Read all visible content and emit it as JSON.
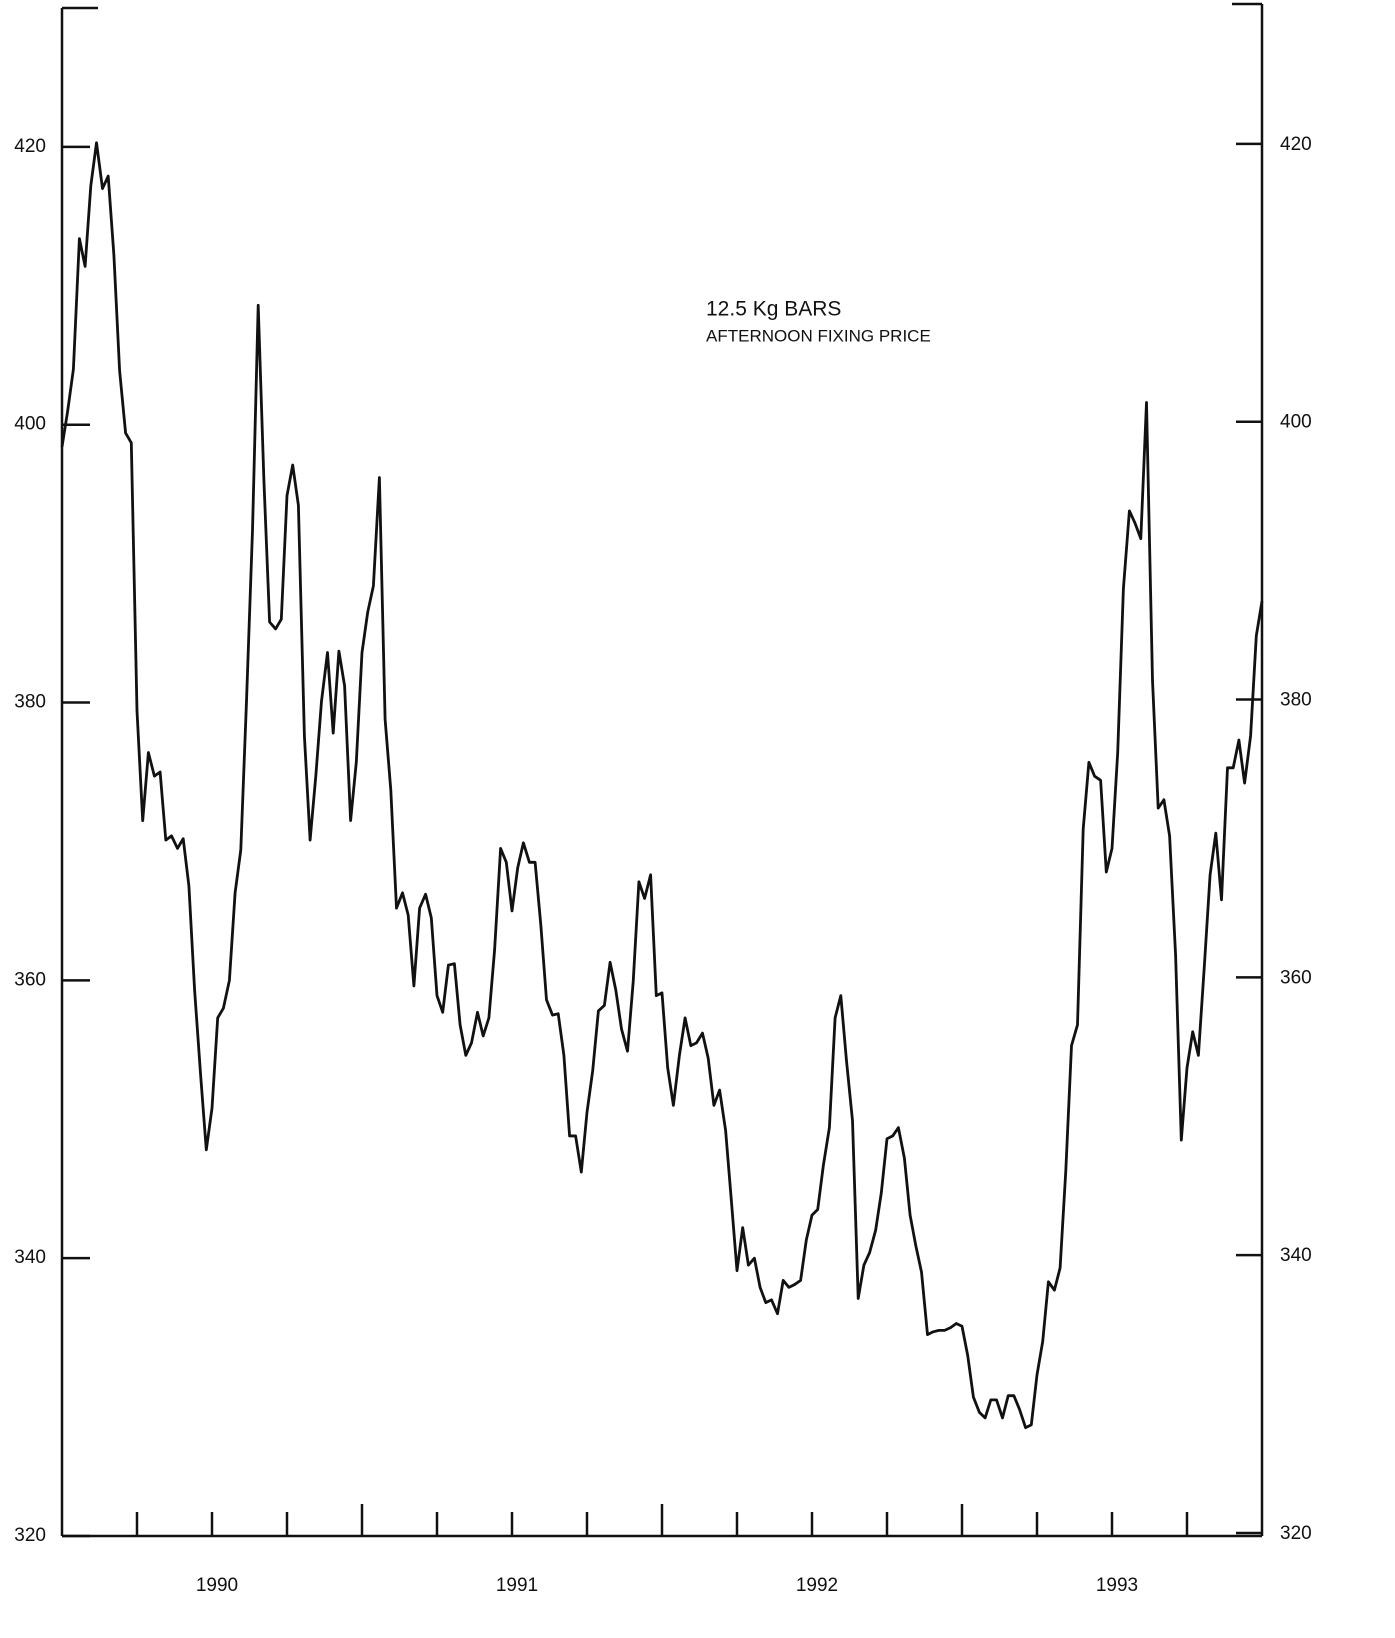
{
  "chart_data": {
    "type": "line",
    "annotations": [
      "12.5 Kg BARS",
      "AFTERNOON FIXING PRICE"
    ],
    "xlim": [
      1989.5,
      1993.5
    ],
    "xticks": [
      1990,
      1991,
      1992,
      1993
    ],
    "xminorticks": [
      1989.75,
      1990.25,
      1990.5,
      1990.75,
      1991.25,
      1991.5,
      1991.75,
      1992.25,
      1992.5,
      1992.75,
      1993.25
    ],
    "ylim": [
      320,
      430
    ],
    "yticks": [
      320,
      340,
      360,
      380,
      400,
      420
    ],
    "grid": false,
    "series": [
      {
        "color": "#111111",
        "x": [
          1989.5,
          1989.519,
          1989.538,
          1989.558,
          1989.577,
          1989.596,
          1989.615,
          1989.635,
          1989.654,
          1989.673,
          1989.692,
          1989.712,
          1989.731,
          1989.75,
          1989.769,
          1989.788,
          1989.808,
          1989.827,
          1989.846,
          1989.865,
          1989.885,
          1989.904,
          1989.923,
          1989.942,
          1989.962,
          1989.981,
          1990,
          1990.019,
          1990.038,
          1990.058,
          1990.077,
          1990.096,
          1990.115,
          1990.135,
          1990.154,
          1990.173,
          1990.192,
          1990.212,
          1990.231,
          1990.25,
          1990.269,
          1990.288,
          1990.308,
          1990.327,
          1990.346,
          1990.365,
          1990.385,
          1990.404,
          1990.423,
          1990.442,
          1990.462,
          1990.481,
          1990.5,
          1990.519,
          1990.538,
          1990.558,
          1990.577,
          1990.596,
          1990.615,
          1990.635,
          1990.654,
          1990.673,
          1990.692,
          1990.712,
          1990.731,
          1990.75,
          1990.769,
          1990.788,
          1990.808,
          1990.827,
          1990.846,
          1990.865,
          1990.885,
          1990.904,
          1990.923,
          1990.942,
          1990.962,
          1990.981,
          1991,
          1991.019,
          1991.038,
          1991.058,
          1991.077,
          1991.096,
          1991.115,
          1991.135,
          1991.154,
          1991.173,
          1991.192,
          1991.212,
          1991.231,
          1991.25,
          1991.269,
          1991.288,
          1991.308,
          1991.327,
          1991.346,
          1991.365,
          1991.385,
          1991.404,
          1991.423,
          1991.442,
          1991.462,
          1991.481,
          1991.5,
          1991.519,
          1991.538,
          1991.558,
          1991.577,
          1991.596,
          1991.615,
          1991.635,
          1991.654,
          1991.673,
          1991.692,
          1991.712,
          1991.731,
          1991.75,
          1991.769,
          1991.788,
          1991.808,
          1991.827,
          1991.846,
          1991.865,
          1991.885,
          1991.904,
          1991.923,
          1991.942,
          1991.962,
          1991.981,
          1992,
          1992.019,
          1992.038,
          1992.058,
          1992.077,
          1992.096,
          1992.115,
          1992.135,
          1992.154,
          1992.173,
          1992.192,
          1992.212,
          1992.231,
          1992.25,
          1992.269,
          1992.288,
          1992.308,
          1992.327,
          1992.346,
          1992.365,
          1992.385,
          1992.404,
          1992.423,
          1992.442,
          1992.462,
          1992.481,
          1992.5,
          1992.519,
          1992.538,
          1992.558,
          1992.577,
          1992.596,
          1992.615,
          1992.635,
          1992.654,
          1992.673,
          1992.692,
          1992.712,
          1992.731,
          1992.75,
          1992.769,
          1992.788,
          1992.808,
          1992.827,
          1992.846,
          1992.865,
          1992.885,
          1992.904,
          1992.923,
          1992.942,
          1992.962,
          1992.981,
          1993,
          1993.019,
          1993.038,
          1993.058,
          1993.077,
          1993.096,
          1993.115,
          1993.135,
          1993.154,
          1993.173,
          1993.192,
          1993.212,
          1993.231,
          1993.25,
          1993.269,
          1993.288,
          1993.308,
          1993.327,
          1993.346,
          1993.365,
          1993.385,
          1993.404,
          1993.423,
          1993.442,
          1993.462,
          1993.481,
          1993.5
        ],
        "values": [
          398.4,
          401,
          404,
          413.4,
          411.4,
          417.2,
          420.3,
          417,
          417.9,
          412.2,
          403.9,
          399.4,
          398.7,
          379.4,
          371.5,
          376.4,
          374.7,
          375,
          370.1,
          370.4,
          369.5,
          370.2,
          366.8,
          359.3,
          353.2,
          347.8,
          350.8,
          357.3,
          358,
          360,
          366.3,
          369.4,
          380.1,
          392.4,
          408.6,
          396,
          385.8,
          385.3,
          386,
          394.9,
          397.1,
          394.2,
          377.6,
          370.1,
          374.7,
          380.1,
          383.6,
          377.8,
          383.7,
          381.2,
          371.5,
          375.7,
          383.6,
          386.5,
          388.4,
          396.2,
          378.8,
          373.7,
          365.2,
          366.3,
          364.7,
          359.6,
          365.2,
          366.2,
          364.5,
          358.9,
          357.7,
          361.1,
          361.2,
          356.8,
          354.6,
          355.5,
          357.7,
          356,
          357.3,
          362.2,
          369.5,
          368.5,
          365,
          368.1,
          369.9,
          368.5,
          368.5,
          364,
          358.6,
          357.5,
          357.6,
          354.6,
          348.8,
          348.8,
          346.2,
          350.5,
          353.5,
          357.8,
          358.2,
          361.3,
          359.3,
          356.5,
          354.9,
          359.9,
          367.1,
          365.9,
          367.6,
          358.9,
          359.1,
          353.7,
          351,
          354.6,
          357.3,
          355.3,
          355.5,
          356.2,
          354.4,
          351,
          352.1,
          349.2,
          344.2,
          339.1,
          342.2,
          339.5,
          340,
          337.9,
          336.8,
          337,
          336,
          338.4,
          337.9,
          338.1,
          338.4,
          341.3,
          343.1,
          343.5,
          346.7,
          349.4,
          357.3,
          358.9,
          354.2,
          349.9,
          337.1,
          339.5,
          340.4,
          342,
          344.7,
          348.6,
          348.8,
          349.4,
          347.2,
          343.1,
          340.9,
          339,
          334.5,
          334.7,
          334.8,
          334.8,
          335,
          335.3,
          335.1,
          333,
          330,
          328.9,
          328.5,
          329.8,
          329.8,
          328.5,
          330.1,
          330.1,
          329.1,
          327.8,
          328,
          331.6,
          334,
          338.3,
          337.7,
          339.3,
          346.3,
          355.3,
          356.8,
          370.9,
          375.7,
          374.7,
          374.4,
          367.8,
          369.5,
          376.4,
          388.2,
          393.8,
          392.9,
          391.8,
          401.6,
          381.6,
          372.4,
          373,
          370.4,
          361.8,
          348.5,
          353.7,
          356.3,
          354.6,
          361.1,
          367.6,
          370.6,
          365.8,
          375.3,
          375.3,
          377.3,
          374.2,
          377.6,
          384.8,
          387.3
        ]
      }
    ]
  }
}
